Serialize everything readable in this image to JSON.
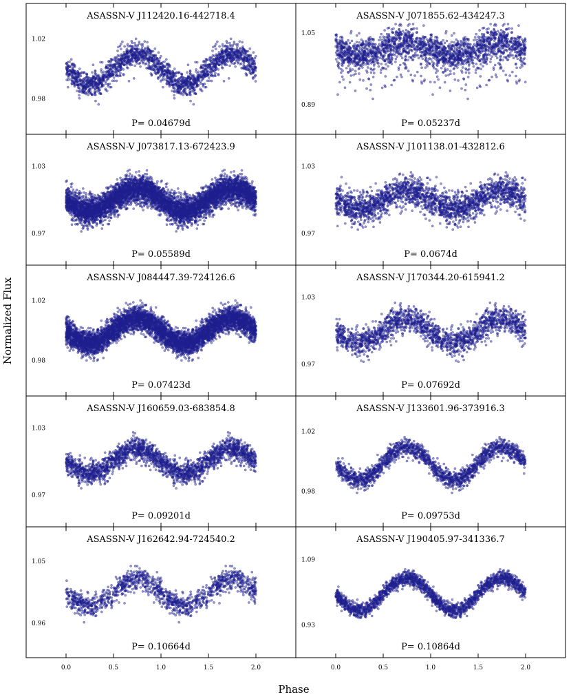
{
  "figure": {
    "xlabel": "Phase",
    "ylabel": "Normalized Flux",
    "x_ticks": [
      "0.0",
      "0.5",
      "1.0",
      "1.5",
      "2.0"
    ],
    "marker_color": "#1f1f8f"
  },
  "chart_data": [
    {
      "type": "scatter",
      "title": "ASASSN-V J112420.16-442718.4",
      "period_label": "P= 0.04679d",
      "period_days": 0.04679,
      "xlim": [
        -0.45,
        2.45
      ],
      "ylim": [
        0.97,
        1.03
      ],
      "y_ticks": [
        "1.02",
        "0.98"
      ],
      "y_tick_values": [
        1.02,
        0.98
      ],
      "model": {
        "mean": 1.0,
        "amplitude": 0.01,
        "scatter": 0.004,
        "outlier_fraction": 0.0,
        "phase_min": 0.25
      },
      "points_per_cycle": 1000
    },
    {
      "type": "scatter",
      "title": "ASASSN-V J071855.62-434247.3",
      "period_label": "P= 0.05237d",
      "period_days": 0.05237,
      "xlim": [
        -0.45,
        2.45
      ],
      "ylim": [
        0.87,
        1.07
      ],
      "y_ticks": [
        "1.05",
        "0.89"
      ],
      "y_tick_values": [
        1.05,
        0.89
      ],
      "model": {
        "mean": 1.015,
        "amplitude": 0.015,
        "scatter": 0.018,
        "outlier_fraction": 0.12,
        "phase_min": 0.25
      },
      "points_per_cycle": 1100
    },
    {
      "type": "scatter",
      "title": "ASASSN-V J073817.13-672423.9",
      "period_label": "P= 0.05589d",
      "period_days": 0.05589,
      "xlim": [
        -0.45,
        2.45
      ],
      "ylim": [
        0.96,
        1.04
      ],
      "y_ticks": [
        "1.03",
        "0.97"
      ],
      "y_tick_values": [
        1.03,
        0.97
      ],
      "model": {
        "mean": 1.0,
        "amplitude": 0.01,
        "scatter": 0.006,
        "outlier_fraction": 0.0,
        "phase_min": 0.25
      },
      "points_per_cycle": 3000
    },
    {
      "type": "scatter",
      "title": "ASASSN-V J101138.01-432812.6",
      "period_label": "P= 0.0674d",
      "period_days": 0.0674,
      "xlim": [
        -0.45,
        2.45
      ],
      "ylim": [
        0.96,
        1.04
      ],
      "y_ticks": [
        "1.03",
        "0.97"
      ],
      "y_tick_values": [
        1.03,
        0.97
      ],
      "model": {
        "mean": 1.0,
        "amplitude": 0.008,
        "scatter": 0.007,
        "outlier_fraction": 0.0,
        "phase_min": 0.25
      },
      "points_per_cycle": 1100
    },
    {
      "type": "scatter",
      "title": "ASASSN-V J084447.39-724126.6",
      "period_label": "P= 0.07423d",
      "period_days": 0.07423,
      "xlim": [
        -0.45,
        2.45
      ],
      "ylim": [
        0.97,
        1.03
      ],
      "y_ticks": [
        "1.02",
        "0.98"
      ],
      "y_tick_values": [
        1.02,
        0.98
      ],
      "model": {
        "mean": 1.0,
        "amplitude": 0.0085,
        "scatter": 0.004,
        "outlier_fraction": 0.0,
        "phase_min": 0.25
      },
      "points_per_cycle": 2800
    },
    {
      "type": "scatter",
      "title": "ASASSN-V J170344.20-615941.2",
      "period_label": "P= 0.07692d",
      "period_days": 0.07692,
      "xlim": [
        -0.45,
        2.45
      ],
      "ylim": [
        0.96,
        1.04
      ],
      "y_ticks": [
        "1.03",
        "0.97"
      ],
      "y_tick_values": [
        1.03,
        0.97
      ],
      "model": {
        "mean": 1.0,
        "amplitude": 0.011,
        "scatter": 0.006,
        "outlier_fraction": 0.0,
        "phase_min": 0.25
      },
      "points_per_cycle": 900
    },
    {
      "type": "scatter",
      "title": "ASASSN-V J160659.03-683854.8",
      "period_label": "P= 0.09201d",
      "period_days": 0.09201,
      "xlim": [
        -0.45,
        2.45
      ],
      "ylim": [
        0.96,
        1.04
      ],
      "y_ticks": [
        "1.03",
        "0.97"
      ],
      "y_tick_values": [
        1.03,
        0.97
      ],
      "model": {
        "mean": 1.0,
        "amplitude": 0.011,
        "scatter": 0.005,
        "outlier_fraction": 0.0,
        "phase_min": 0.25
      },
      "points_per_cycle": 1100
    },
    {
      "type": "scatter",
      "title": "ASASSN-V J133601.96-373916.3",
      "period_label": "P= 0.09753d",
      "period_days": 0.09753,
      "xlim": [
        -0.45,
        2.45
      ],
      "ylim": [
        0.97,
        1.03
      ],
      "y_ticks": [
        "1.02",
        "0.98"
      ],
      "y_tick_values": [
        1.02,
        0.98
      ],
      "model": {
        "mean": 0.9985,
        "amplitude": 0.011,
        "scatter": 0.003,
        "outlier_fraction": 0.0,
        "phase_min": 0.25
      },
      "points_per_cycle": 900
    },
    {
      "type": "scatter",
      "title": "ASASSN-V J162642.94-724540.2",
      "period_label": "P= 0.10664d",
      "period_days": 0.10664,
      "xlim": [
        -0.45,
        2.45
      ],
      "ylim": [
        0.94,
        1.07
      ],
      "y_ticks": [
        "1.05",
        "0.96"
      ],
      "y_tick_values": [
        1.05,
        0.96
      ],
      "model": {
        "mean": 1.005,
        "amplitude": 0.02,
        "scatter": 0.008,
        "outlier_fraction": 0.0,
        "phase_min": 0.25
      },
      "points_per_cycle": 650
    },
    {
      "type": "scatter",
      "title": "ASASSN-V J190405.97-341336.7",
      "period_label": "P= 0.10864d",
      "period_days": 0.10864,
      "xlim": [
        -0.45,
        2.45
      ],
      "ylim": [
        0.9,
        1.12
      ],
      "y_ticks": [
        "1.09",
        "0.93"
      ],
      "y_tick_values": [
        1.09,
        0.93
      ],
      "model": {
        "mean": 1.005,
        "amplitude": 0.04,
        "scatter": 0.009,
        "outlier_fraction": 0.0,
        "phase_min": 0.25
      },
      "points_per_cycle": 1000
    }
  ]
}
